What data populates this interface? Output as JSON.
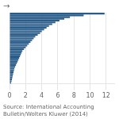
{
  "chart_data": {
    "type": "bar",
    "orientation": "horizontal",
    "values": [
      11.8,
      9.2,
      7.5,
      6.8,
      6.2,
      5.7,
      5.3,
      4.9,
      4.6,
      4.3,
      4.0,
      3.8,
      3.5,
      3.2,
      3.0,
      2.8,
      2.6,
      2.4,
      2.2,
      2.0,
      1.8,
      1.6,
      1.5,
      1.4,
      1.3,
      1.2,
      1.1,
      1.0,
      0.9,
      0.8,
      0.7,
      0.6,
      0.55,
      0.5,
      0.45,
      0.4,
      0.35,
      0.3,
      0.25,
      0.2
    ],
    "color": "#2a5c8a",
    "xlim": [
      0,
      13.0
    ],
    "xticks": [
      0,
      2,
      4,
      6,
      8,
      10,
      12
    ],
    "grid": true,
    "tick_labels": "x",
    "annotation": "→",
    "footnote": "Source: International Accounting Bulletin/Wolters Kluwer (2014)"
  }
}
